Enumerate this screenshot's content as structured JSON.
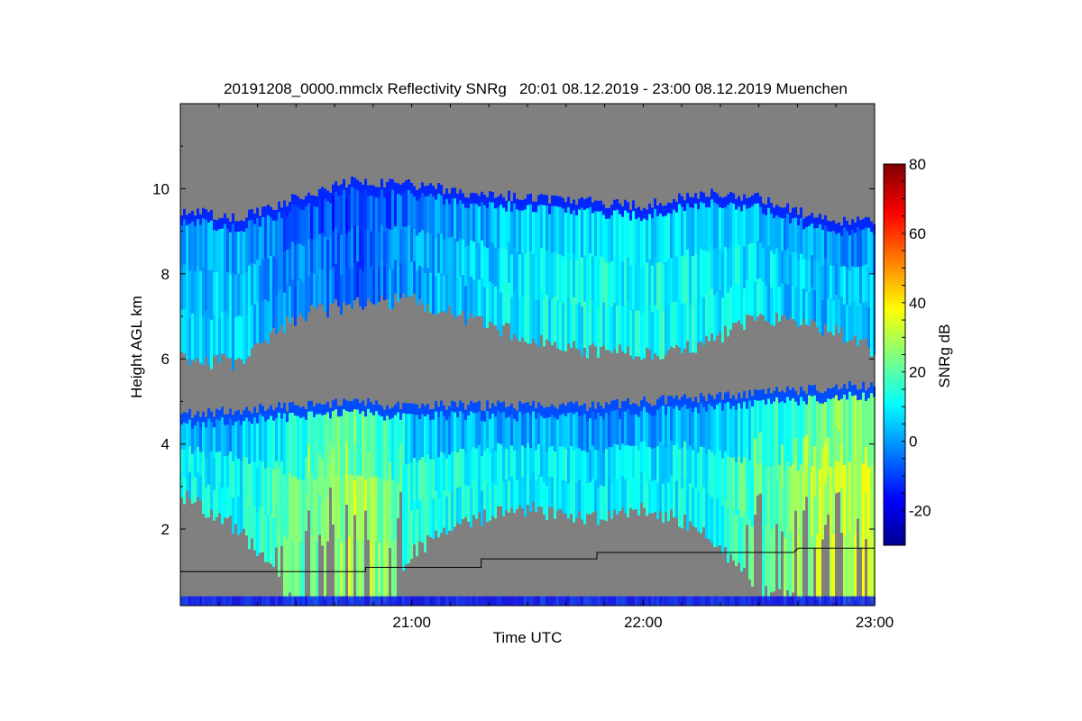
{
  "chart_data": {
    "type": "heatmap",
    "title": "20191208_0000.mmclx Reflectivity SNRg   20:01 08.12.2019 - 23:00 08.12.2019 Muenchen",
    "xlabel": "Time UTC",
    "ylabel": "Height AGL km",
    "xlim_hours": [
      20.0,
      23.0
    ],
    "ylim": [
      0.2,
      12.0
    ],
    "xticks": [
      {
        "v": 21,
        "label": "21:00"
      },
      {
        "v": 22,
        "label": "22:00"
      },
      {
        "v": 23,
        "label": "23:00"
      }
    ],
    "yticks": [
      {
        "v": 2,
        "label": "2"
      },
      {
        "v": 4,
        "label": "4"
      },
      {
        "v": 6,
        "label": "6"
      },
      {
        "v": 8,
        "label": "8"
      },
      {
        "v": 10,
        "label": "10"
      }
    ],
    "colorbar": {
      "label": "SNRg dB",
      "range": [
        -30,
        80
      ],
      "ticks": [
        {
          "v": -20,
          "label": "-20"
        },
        {
          "v": 0,
          "label": "0"
        },
        {
          "v": 20,
          "label": "20"
        },
        {
          "v": 40,
          "label": "40"
        },
        {
          "v": 60,
          "label": "60"
        },
        {
          "v": 80,
          "label": "80"
        }
      ],
      "colormap": "jet"
    },
    "background_color": "#808080",
    "upper_layer": [
      {
        "t": 20.0,
        "top": 9.5,
        "base": 6.0,
        "snr": 5
      },
      {
        "t": 20.25,
        "top": 9.3,
        "base": 5.9,
        "snr": 5
      },
      {
        "t": 20.5,
        "top": 9.8,
        "base": 7.0,
        "snr": -2
      },
      {
        "t": 20.75,
        "top": 10.2,
        "base": 7.3,
        "snr": -6
      },
      {
        "t": 21.0,
        "top": 10.1,
        "base": 7.4,
        "snr": 0
      },
      {
        "t": 21.25,
        "top": 9.9,
        "base": 6.9,
        "snr": 6
      },
      {
        "t": 21.5,
        "top": 9.8,
        "base": 6.5,
        "snr": 10
      },
      {
        "t": 21.75,
        "top": 9.7,
        "base": 6.2,
        "snr": 12
      },
      {
        "t": 22.0,
        "top": 9.6,
        "base": 6.1,
        "snr": 12
      },
      {
        "t": 22.25,
        "top": 9.9,
        "base": 6.3,
        "snr": 12
      },
      {
        "t": 22.5,
        "top": 9.8,
        "base": 7.0,
        "snr": 8
      },
      {
        "t": 22.75,
        "top": 9.3,
        "base": 6.8,
        "snr": 4
      },
      {
        "t": 23.0,
        "top": 9.2,
        "base": 6.2,
        "snr": 5
      }
    ],
    "lower_layer": [
      {
        "t": 20.0,
        "top": 4.7,
        "base": 2.8,
        "snr": 6
      },
      {
        "t": 20.25,
        "top": 4.8,
        "base": 2.0,
        "snr": 8
      },
      {
        "t": 20.5,
        "top": 4.9,
        "base": 0.2,
        "snr": 18
      },
      {
        "t": 20.75,
        "top": 5.0,
        "base": 0.2,
        "snr": 26
      },
      {
        "t": 20.9,
        "top": 4.9,
        "base": 0.2,
        "snr": 20
      },
      {
        "t": 21.0,
        "top": 4.9,
        "base": 1.5,
        "snr": 10
      },
      {
        "t": 21.25,
        "top": 4.9,
        "base": 2.2,
        "snr": 8
      },
      {
        "t": 21.5,
        "top": 4.9,
        "base": 2.5,
        "snr": 6
      },
      {
        "t": 21.75,
        "top": 4.9,
        "base": 2.2,
        "snr": 5
      },
      {
        "t": 22.0,
        "top": 5.0,
        "base": 2.5,
        "snr": 5
      },
      {
        "t": 22.25,
        "top": 5.1,
        "base": 2.0,
        "snr": 8
      },
      {
        "t": 22.5,
        "top": 5.2,
        "base": 0.5,
        "snr": 16
      },
      {
        "t": 22.75,
        "top": 5.3,
        "base": 0.2,
        "snr": 26
      },
      {
        "t": 23.0,
        "top": 5.4,
        "base": 0.2,
        "snr": 30
      }
    ],
    "boundary_line": [
      {
        "t": 20.0,
        "h": 1.0
      },
      {
        "t": 20.8,
        "h": 1.0
      },
      {
        "t": 20.8,
        "h": 1.1
      },
      {
        "t": 21.3,
        "h": 1.1
      },
      {
        "t": 21.3,
        "h": 1.3
      },
      {
        "t": 21.8,
        "h": 1.3
      },
      {
        "t": 21.8,
        "h": 1.45
      },
      {
        "t": 22.65,
        "h": 1.45
      },
      {
        "t": 22.67,
        "h": 1.55
      },
      {
        "t": 23.0,
        "h": 1.55
      }
    ]
  }
}
